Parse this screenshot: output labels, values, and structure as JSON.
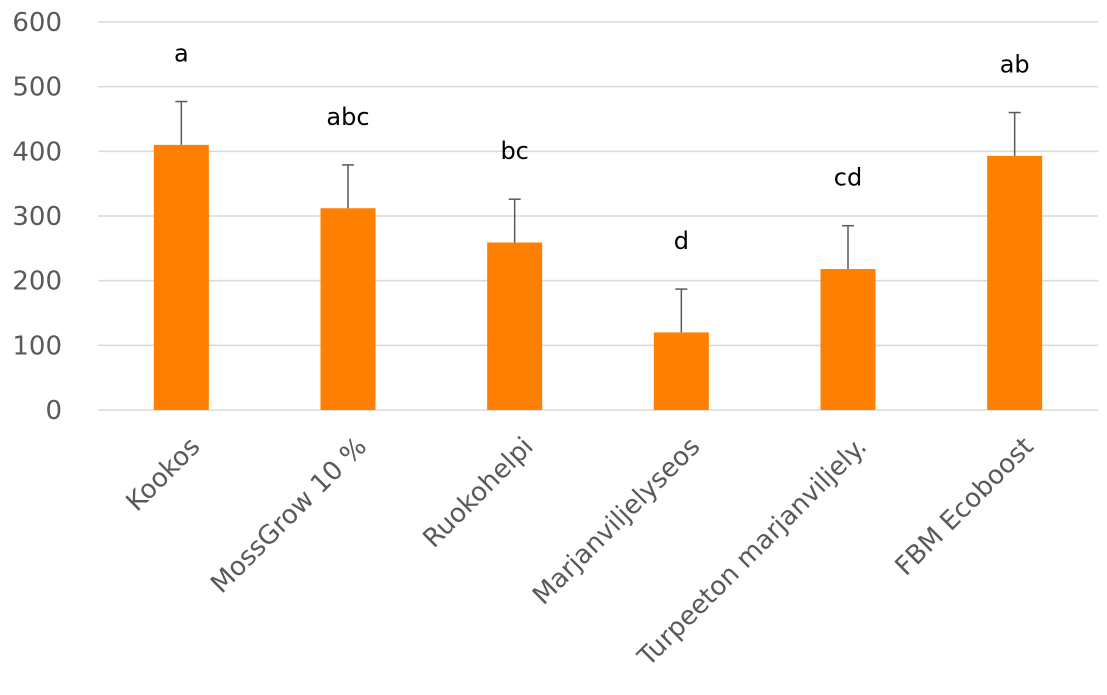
{
  "chart_data": {
    "type": "bar",
    "categories": [
      "Kookos",
      "MossGrow 10 %",
      "Ruokohelpi",
      "Marjanviljelyseos",
      "Turpeeton marjanviljely.",
      "FBM Ecoboost"
    ],
    "values": [
      410,
      312,
      259,
      120,
      218,
      393
    ],
    "error_plus": [
      67,
      67,
      67,
      67,
      67,
      67
    ],
    "significance_letters": [
      "a",
      "abc",
      "bc",
      "d",
      "cd",
      "ab"
    ],
    "ylim": [
      0,
      600
    ],
    "yticks": [
      0,
      100,
      200,
      300,
      400,
      500,
      600
    ],
    "ytick_labels": [
      "0",
      "100",
      "200",
      "300",
      "400",
      "500",
      "600"
    ],
    "grid": true,
    "colors": {
      "bar": "#ff8000",
      "error_bar": "#595959",
      "grid": "#d9d9d9",
      "axis_line": "#d9d9d9"
    }
  }
}
